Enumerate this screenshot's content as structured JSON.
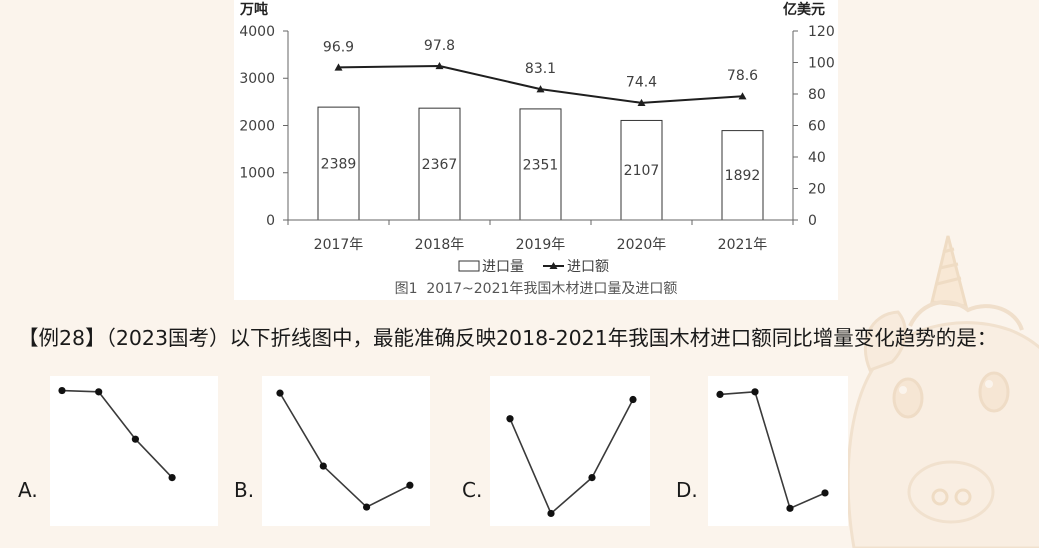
{
  "question": {
    "tag": "【例28】",
    "source": "（2023国考）",
    "text": "以下折线图中，最能准确反映2018-2021年我国木材进口额同比增量变化趋势的是："
  },
  "options": [
    "A.",
    "B.",
    "C.",
    "D."
  ],
  "chart_data": [
    {
      "type": "bar",
      "categories": [
        "2017年",
        "2018年",
        "2019年",
        "2020年",
        "2021年"
      ],
      "series": [
        {
          "name": "进口量",
          "type": "bar",
          "axis": "left",
          "values": [
            2389,
            2367,
            2351,
            2107,
            1892
          ]
        },
        {
          "name": "进口额",
          "type": "line",
          "axis": "right",
          "values": [
            96.9,
            97.8,
            83.1,
            74.4,
            78.6
          ]
        }
      ],
      "title": "图1  2017~2021年我国木材进口量及进口额",
      "ylabel": "万吨",
      "ylabel_right": "亿美元",
      "ylim": [
        0,
        4000
      ],
      "ylim_right": [
        0,
        120
      ],
      "yticks": [
        0,
        1000,
        2000,
        3000,
        4000
      ],
      "yticks_right": [
        0,
        20,
        40,
        60,
        80,
        100,
        120
      ],
      "grid": false,
      "legend": "bottom",
      "data_labels": true,
      "colors": {
        "bar_fill": "#ffffff",
        "bar_stroke": "#333333",
        "line": "#1f1f1f",
        "axis": "#666666"
      }
    },
    {
      "type": "line",
      "values": [
        9.8,
        9.7,
        6.0,
        3.0
      ]
    },
    {
      "type": "line",
      "values": [
        9.6,
        3.9,
        0.7,
        2.4
      ]
    },
    {
      "type": "line",
      "values": [
        7.6,
        0.2,
        3.0,
        9.1
      ]
    },
    {
      "type": "line",
      "values": [
        9.5,
        9.7,
        0.6,
        1.8
      ]
    }
  ]
}
